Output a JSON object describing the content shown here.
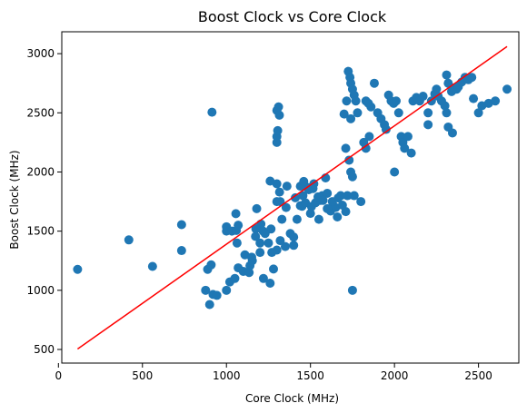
{
  "chart_data": {
    "type": "scatter",
    "title": "Boost Clock vs Core Clock",
    "xlabel": "Core Clock (MHz)",
    "ylabel": "Boost Clock (MHz)",
    "xlim": [
      20,
      2740
    ],
    "ylim": [
      385,
      3185
    ],
    "xticks": [
      0,
      500,
      1000,
      1500,
      2000,
      2500
    ],
    "yticks": [
      500,
      1000,
      1500,
      2000,
      2500,
      3000
    ],
    "grid": false,
    "legend": "none",
    "colors": {
      "points": "#1f77b4",
      "trendline": "#ff0000"
    },
    "series": [
      {
        "type": "scatter",
        "points": [
          [
            114,
            1177
          ],
          [
            419,
            1426
          ],
          [
            560,
            1202
          ],
          [
            733,
            1555
          ],
          [
            733,
            1336
          ],
          [
            914,
            2505
          ],
          [
            1000,
            1000
          ],
          [
            888,
            1177
          ],
          [
            909,
            1215
          ],
          [
            920,
            965
          ],
          [
            900,
            880
          ],
          [
            943,
            957
          ],
          [
            876,
            1000
          ],
          [
            1000,
            1500
          ],
          [
            1000,
            1537
          ],
          [
            1033,
            1500
          ],
          [
            1059,
            1506
          ],
          [
            1056,
            1648
          ],
          [
            1020,
            1071
          ],
          [
            1050,
            1100
          ],
          [
            1070,
            1190
          ],
          [
            1100,
            1160
          ],
          [
            1063,
            1400
          ],
          [
            1070,
            1550
          ],
          [
            1110,
            1300
          ],
          [
            1135,
            1150
          ],
          [
            1140,
            1208
          ],
          [
            1154,
            1250
          ],
          [
            1200,
            1400
          ],
          [
            1173,
            1455
          ],
          [
            1180,
            1690
          ],
          [
            1218,
            1500
          ],
          [
            1250,
            1400
          ],
          [
            1265,
            1518
          ],
          [
            1260,
            1923
          ],
          [
            1300,
            1900
          ],
          [
            1300,
            2250
          ],
          [
            1300,
            2300
          ],
          [
            1305,
            2350
          ],
          [
            1300,
            2520
          ],
          [
            1310,
            2550
          ],
          [
            1315,
            2480
          ],
          [
            1316,
            1830
          ],
          [
            1300,
            1750
          ],
          [
            1320,
            1750
          ],
          [
            1330,
            1600
          ],
          [
            1355,
            1700
          ],
          [
            1360,
            1880
          ],
          [
            1380,
            1480
          ],
          [
            1400,
            1380
          ],
          [
            1400,
            1450
          ],
          [
            1420,
            1600
          ],
          [
            1410,
            1782
          ],
          [
            1440,
            1715
          ],
          [
            1450,
            1710
          ],
          [
            1455,
            1800
          ],
          [
            1470,
            1740
          ],
          [
            1480,
            1870
          ],
          [
            1500,
            1650
          ],
          [
            1506,
            1708
          ],
          [
            1515,
            1860
          ],
          [
            1530,
            1740
          ],
          [
            1550,
            1600
          ],
          [
            1560,
            1760
          ],
          [
            1570,
            1800
          ],
          [
            1590,
            1950
          ],
          [
            1600,
            1820
          ],
          [
            1620,
            1670
          ],
          [
            1635,
            1720
          ],
          [
            1650,
            1700
          ],
          [
            1665,
            1780
          ],
          [
            1680,
            1800
          ],
          [
            1710,
            1665
          ],
          [
            1720,
            1800
          ],
          [
            1730,
            2100
          ],
          [
            1710,
            2200
          ],
          [
            1740,
            2000
          ],
          [
            1760,
            1800
          ],
          [
            1750,
            1960
          ],
          [
            1700,
            2490
          ],
          [
            1715,
            2600
          ],
          [
            1725,
            2850
          ],
          [
            1735,
            2800
          ],
          [
            1740,
            2750
          ],
          [
            1750,
            2700
          ],
          [
            1760,
            2650
          ],
          [
            1770,
            2600
          ],
          [
            1740,
            2450
          ],
          [
            1780,
            2500
          ],
          [
            1750,
            1000
          ],
          [
            1800,
            1750
          ],
          [
            1817,
            2250
          ],
          [
            1830,
            2200
          ],
          [
            1850,
            2300
          ],
          [
            1830,
            2600
          ],
          [
            1845,
            2580
          ],
          [
            1860,
            2550
          ],
          [
            1880,
            2750
          ],
          [
            1900,
            2500
          ],
          [
            1920,
            2450
          ],
          [
            1940,
            2400
          ],
          [
            1950,
            2360
          ],
          [
            1965,
            2650
          ],
          [
            1980,
            2600
          ],
          [
            1995,
            2580
          ],
          [
            2010,
            2600
          ],
          [
            2000,
            2000
          ],
          [
            2025,
            2500
          ],
          [
            2040,
            2300
          ],
          [
            2050,
            2250
          ],
          [
            2060,
            2200
          ],
          [
            2080,
            2300
          ],
          [
            2100,
            2160
          ],
          [
            2110,
            2600
          ],
          [
            2130,
            2630
          ],
          [
            2150,
            2600
          ],
          [
            2170,
            2640
          ],
          [
            2200,
            2500
          ],
          [
            2200,
            2400
          ],
          [
            2220,
            2600
          ],
          [
            2240,
            2660
          ],
          [
            2250,
            2700
          ],
          [
            2260,
            2640
          ],
          [
            2280,
            2600
          ],
          [
            2300,
            2560
          ],
          [
            2310,
            2820
          ],
          [
            2320,
            2750
          ],
          [
            2340,
            2680
          ],
          [
            2350,
            2710
          ],
          [
            2370,
            2700
          ],
          [
            2380,
            2720
          ],
          [
            2400,
            2760
          ],
          [
            2420,
            2800
          ],
          [
            2440,
            2780
          ],
          [
            2460,
            2800
          ],
          [
            2470,
            2620
          ],
          [
            2500,
            2500
          ],
          [
            2520,
            2560
          ],
          [
            2560,
            2580
          ],
          [
            2600,
            2600
          ],
          [
            2670,
            2700
          ],
          [
            2320,
            2380
          ],
          [
            2345,
            2330
          ],
          [
            2310,
            2500
          ],
          [
            1300,
            1340
          ],
          [
            1320,
            1420
          ],
          [
            1350,
            1370
          ],
          [
            1440,
            1880
          ],
          [
            1460,
            1920
          ],
          [
            1490,
            1850
          ],
          [
            1520,
            1900
          ],
          [
            1545,
            1790
          ],
          [
            1575,
            1760
          ],
          [
            1600,
            1690
          ],
          [
            1630,
            1750
          ],
          [
            1660,
            1620
          ],
          [
            1690,
            1720
          ],
          [
            1205,
            1560
          ],
          [
            1230,
            1480
          ],
          [
            1175,
            1520
          ],
          [
            1200,
            1320
          ],
          [
            1150,
            1280
          ],
          [
            1270,
            1320
          ],
          [
            1280,
            1180
          ],
          [
            1260,
            1060
          ],
          [
            1220,
            1100
          ]
        ]
      },
      {
        "type": "line",
        "points": [
          [
            114,
            504
          ],
          [
            2670,
            3060
          ]
        ]
      }
    ]
  }
}
